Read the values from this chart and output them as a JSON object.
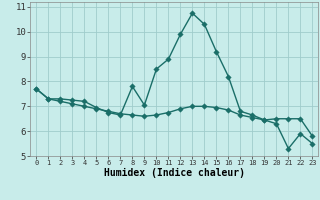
{
  "title": "",
  "xlabel": "Humidex (Indice chaleur)",
  "bg_color": "#c8ecea",
  "line_color": "#1a6e68",
  "grid_color": "#a0cccc",
  "xlim": [
    -0.5,
    23.5
  ],
  "ylim": [
    5,
    11.2
  ],
  "xticks": [
    0,
    1,
    2,
    3,
    4,
    5,
    6,
    7,
    8,
    9,
    10,
    11,
    12,
    13,
    14,
    15,
    16,
    17,
    18,
    19,
    20,
    21,
    22,
    23
  ],
  "yticks": [
    5,
    6,
    7,
    8,
    9,
    10,
    11
  ],
  "series1_x": [
    0,
    1,
    2,
    3,
    4,
    5,
    6,
    7,
    8,
    9,
    10,
    11,
    12,
    13,
    14,
    15,
    16,
    17,
    18,
    19,
    20,
    21,
    22,
    23
  ],
  "series1_y": [
    7.7,
    7.3,
    7.3,
    7.25,
    7.2,
    6.95,
    6.75,
    6.65,
    7.8,
    7.05,
    8.5,
    8.9,
    9.9,
    10.75,
    10.3,
    9.2,
    8.2,
    6.8,
    6.65,
    6.45,
    6.5,
    6.5,
    6.5,
    5.8
  ],
  "series2_x": [
    0,
    1,
    2,
    3,
    4,
    5,
    6,
    7,
    8,
    9,
    10,
    11,
    12,
    13,
    14,
    15,
    16,
    17,
    18,
    19,
    20,
    21,
    22,
    23
  ],
  "series2_y": [
    7.7,
    7.3,
    7.2,
    7.1,
    7.0,
    6.9,
    6.8,
    6.7,
    6.65,
    6.6,
    6.65,
    6.75,
    6.9,
    7.0,
    7.0,
    6.95,
    6.85,
    6.65,
    6.55,
    6.45,
    6.3,
    5.3,
    5.9,
    5.5
  ],
  "markersize": 2.8,
  "linewidth": 1.0
}
